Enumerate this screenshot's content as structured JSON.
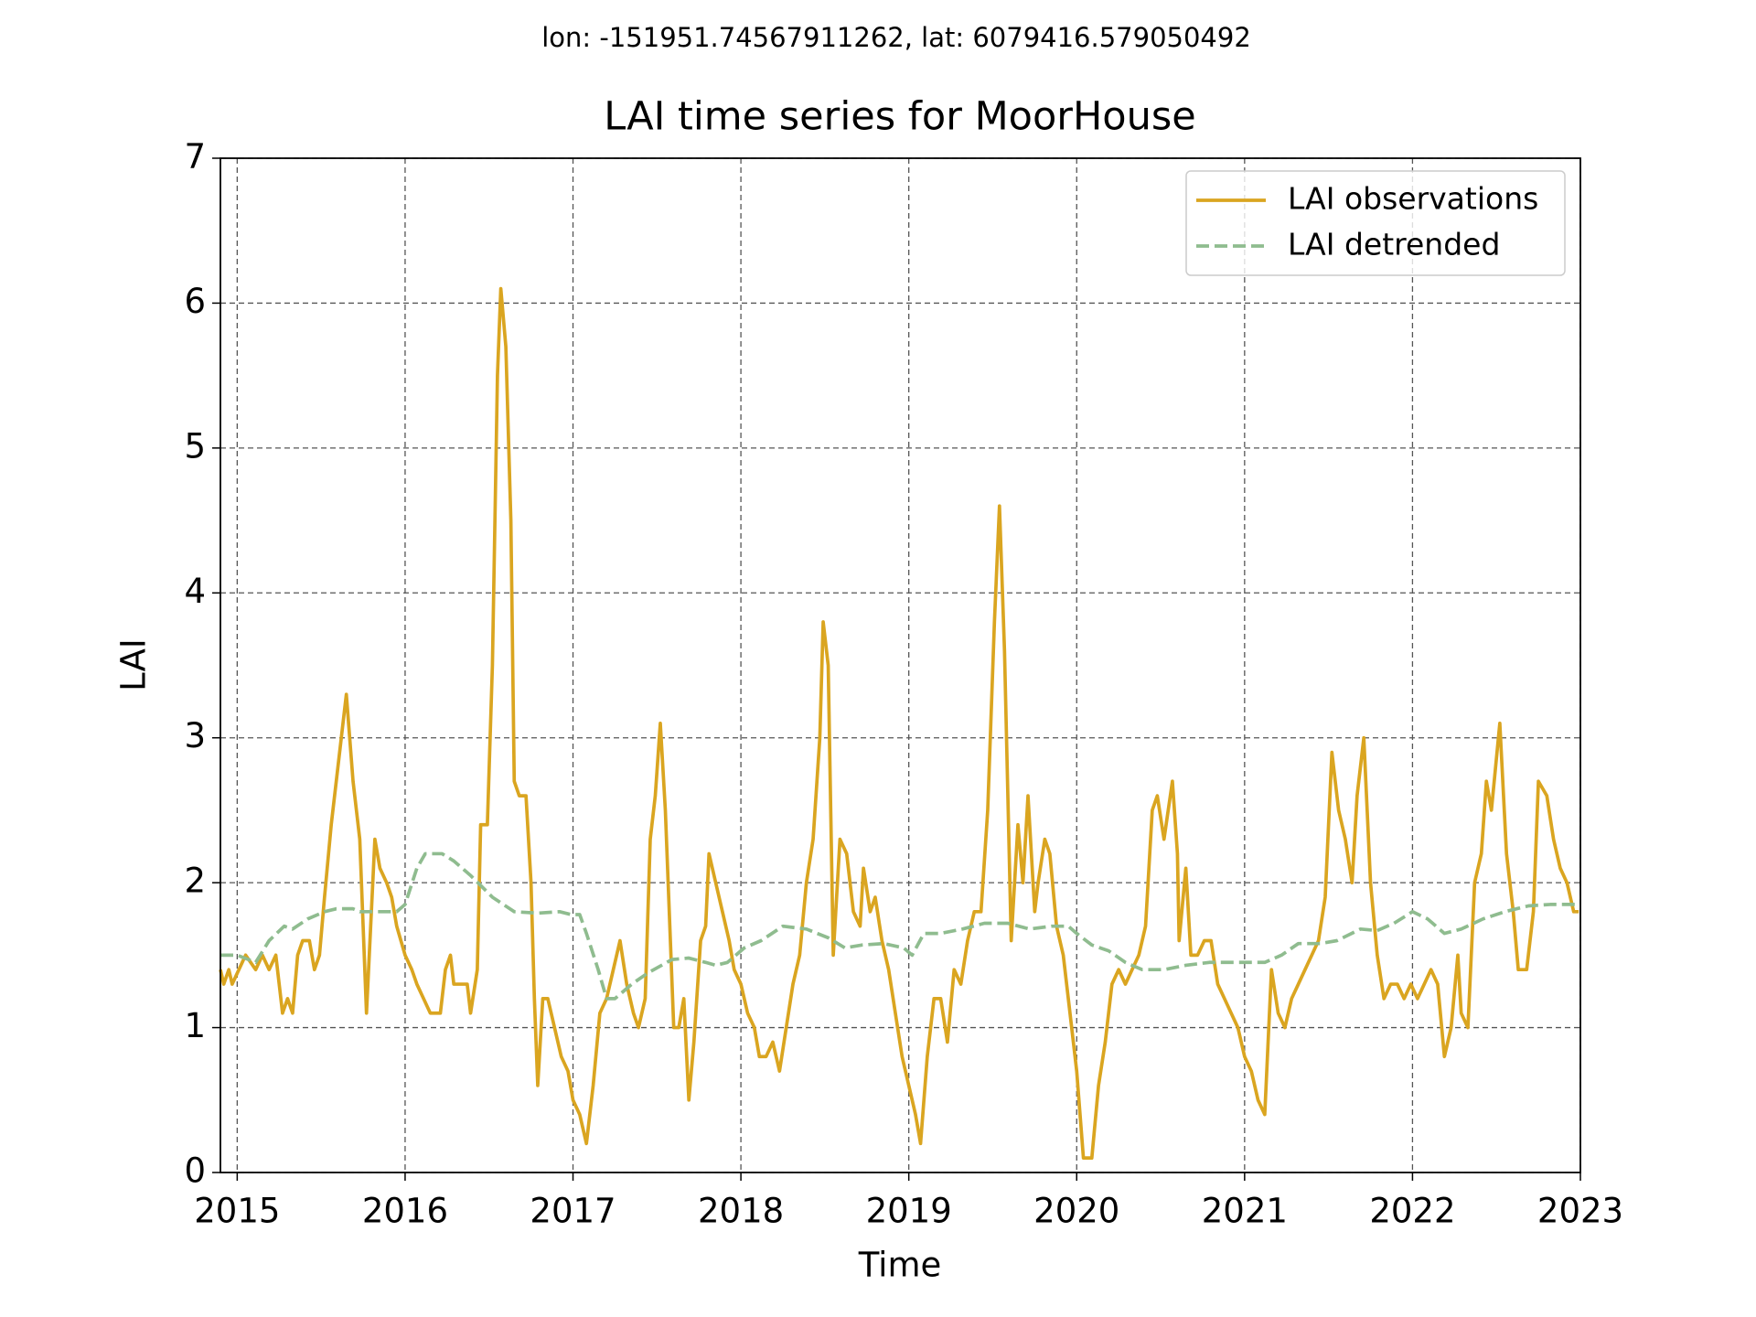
{
  "chart_data": {
    "type": "line",
    "suptitle": "lon: -151951.74567911262, lat: 6079416.579050492",
    "title": "LAI time series for MoorHouse",
    "x_label": "Time",
    "y_label": "LAI",
    "xlim": [
      2014.9,
      2023
    ],
    "xticks": [
      2015,
      2016,
      2017,
      2018,
      2019,
      2020,
      2021,
      2022,
      2023
    ],
    "ylim": [
      0,
      7
    ],
    "yticks": [
      0,
      1,
      2,
      3,
      4,
      5,
      6,
      7
    ],
    "grid": true,
    "legend": "upper right",
    "series": [
      {
        "name": "LAI observations",
        "color": "#daa520",
        "dash": "solid",
        "x": [
          2014.9,
          2014.92,
          2014.95,
          2014.97,
          2015.01,
          2015.05,
          2015.11,
          2015.15,
          2015.19,
          2015.23,
          2015.25,
          2015.27,
          2015.3,
          2015.33,
          2015.36,
          2015.39,
          2015.43,
          2015.46,
          2015.49,
          2015.52,
          2015.56,
          2015.6,
          2015.65,
          2015.69,
          2015.73,
          2015.77,
          2015.82,
          2015.85,
          2015.89,
          2015.92,
          2015.95,
          2016.0,
          2016.04,
          2016.07,
          2016.11,
          2016.15,
          2016.21,
          2016.24,
          2016.27,
          2016.29,
          2016.33,
          2016.37,
          2016.39,
          2016.43,
          2016.45,
          2016.49,
          2016.52,
          2016.55,
          2016.57,
          2016.6,
          2016.63,
          2016.65,
          2016.68,
          2016.72,
          2016.75,
          2016.77,
          2016.79,
          2016.82,
          2016.85,
          2016.89,
          2016.93,
          2016.97,
          2017.0,
          2017.04,
          2017.08,
          2017.12,
          2017.16,
          2017.2,
          2017.24,
          2017.28,
          2017.32,
          2017.36,
          2017.39,
          2017.43,
          2017.46,
          2017.49,
          2017.52,
          2017.55,
          2017.57,
          2017.6,
          2017.63,
          2017.66,
          2017.69,
          2017.72,
          2017.76,
          2017.79,
          2017.81,
          2017.85,
          2017.89,
          2017.93,
          2017.96,
          2018.0,
          2018.04,
          2018.08,
          2018.11,
          2018.15,
          2018.19,
          2018.21,
          2018.23,
          2018.27,
          2018.31,
          2018.35,
          2018.39,
          2018.43,
          2018.47,
          2018.49,
          2018.52,
          2018.55,
          2018.59,
          2018.63,
          2018.67,
          2018.71,
          2018.73,
          2018.77,
          2018.8,
          2018.84,
          2018.88,
          2018.92,
          2018.96,
          2019.0,
          2019.04,
          2019.07,
          2019.11,
          2019.15,
          2019.19,
          2019.23,
          2019.27,
          2019.31,
          2019.35,
          2019.39,
          2019.43,
          2019.47,
          2019.51,
          2019.54,
          2019.57,
          2019.61,
          2019.65,
          2019.68,
          2019.71,
          2019.75,
          2019.77,
          2019.81,
          2019.84,
          2019.88,
          2019.92,
          2019.96,
          2020.0,
          2020.04,
          2020.09,
          2020.13,
          2020.17,
          2020.21,
          2020.25,
          2020.29,
          2020.33,
          2020.37,
          2020.41,
          2020.45,
          2020.48,
          2020.52,
          2020.57,
          2020.6,
          2020.61,
          2020.65,
          2020.68,
          2020.72,
          2020.76,
          2020.8,
          2020.84,
          2020.88,
          2020.92,
          2020.96,
          2021.0,
          2021.04,
          2021.08,
          2021.12,
          2021.16,
          2021.2,
          2021.24,
          2021.28,
          2021.32,
          2021.36,
          2021.4,
          2021.44,
          2021.48,
          2021.52,
          2021.56,
          2021.6,
          2021.64,
          2021.67,
          2021.71,
          2021.75,
          2021.79,
          2021.83,
          2021.87,
          2021.91,
          2021.95,
          2021.99,
          2022.03,
          2022.07,
          2022.11,
          2022.15,
          2022.19,
          2022.23,
          2022.27,
          2022.29,
          2022.33,
          2022.37,
          2022.41,
          2022.44,
          2022.47,
          2022.52,
          2022.56,
          2022.6,
          2022.63,
          2022.68,
          2022.72,
          2022.75,
          2022.8,
          2022.84,
          2022.88,
          2022.92,
          2022.96,
          2022.99
        ],
        "values": [
          1.4,
          1.3,
          1.4,
          1.3,
          1.4,
          1.5,
          1.4,
          1.5,
          1.4,
          1.5,
          1.3,
          1.1,
          1.2,
          1.1,
          1.5,
          1.6,
          1.6,
          1.4,
          1.5,
          1.9,
          2.4,
          2.8,
          3.3,
          2.7,
          2.3,
          1.1,
          2.3,
          2.1,
          2.0,
          1.9,
          1.7,
          1.5,
          1.4,
          1.3,
          1.2,
          1.1,
          1.1,
          1.4,
          1.5,
          1.3,
          1.3,
          1.3,
          1.1,
          1.4,
          2.4,
          2.4,
          3.5,
          5.5,
          6.1,
          5.7,
          4.5,
          2.7,
          2.6,
          2.6,
          2.0,
          1.2,
          0.6,
          1.2,
          1.2,
          1.0,
          0.8,
          0.7,
          0.5,
          0.4,
          0.2,
          0.6,
          1.1,
          1.2,
          1.4,
          1.6,
          1.3,
          1.1,
          1.0,
          1.2,
          2.3,
          2.6,
          3.1,
          2.5,
          1.9,
          1.0,
          1.0,
          1.2,
          0.5,
          0.9,
          1.6,
          1.7,
          2.2,
          2.0,
          1.8,
          1.6,
          1.4,
          1.3,
          1.1,
          1.0,
          0.8,
          0.8,
          0.9,
          0.8,
          0.7,
          1.0,
          1.3,
          1.5,
          2.0,
          2.3,
          3.0,
          3.8,
          3.5,
          1.5,
          2.3,
          2.2,
          1.8,
          1.7,
          2.1,
          1.8,
          1.9,
          1.6,
          1.4,
          1.1,
          0.8,
          0.6,
          0.4,
          0.2,
          0.8,
          1.2,
          1.2,
          0.9,
          1.4,
          1.3,
          1.6,
          1.8,
          1.8,
          2.5,
          3.8,
          4.6,
          3.6,
          1.6,
          2.4,
          2.0,
          2.6,
          1.8,
          2.0,
          2.3,
          2.2,
          1.7,
          1.5,
          1.1,
          0.7,
          0.1,
          0.1,
          0.6,
          0.9,
          1.3,
          1.4,
          1.3,
          1.4,
          1.5,
          1.7,
          2.5,
          2.6,
          2.3,
          2.7,
          2.2,
          1.6,
          2.1,
          1.5,
          1.5,
          1.6,
          1.6,
          1.3,
          1.2,
          1.1,
          1.0,
          0.8,
          0.7,
          0.5,
          0.4,
          1.4,
          1.1,
          1.0,
          1.2,
          1.3,
          1.4,
          1.5,
          1.6,
          1.9,
          2.9,
          2.5,
          2.3,
          2.0,
          2.6,
          3.0,
          2.0,
          1.5,
          1.2,
          1.3,
          1.3,
          1.2,
          1.3,
          1.2,
          1.3,
          1.4,
          1.3,
          0.8,
          1.0,
          1.5,
          1.1,
          1.0,
          2.0,
          2.2,
          2.7,
          2.5,
          3.1,
          2.2,
          1.8,
          1.4,
          1.4,
          1.8,
          2.7,
          2.6,
          2.3,
          2.1,
          2.0,
          1.8,
          1.8
        ]
      },
      {
        "name": "LAI detrended",
        "color": "#8fbc8f",
        "dash": "dashed",
        "x": [
          2014.9,
          2015.0,
          2015.11,
          2015.19,
          2015.28,
          2015.33,
          2015.42,
          2015.52,
          2015.59,
          2015.69,
          2015.73,
          2015.85,
          2015.95,
          2016.0,
          2016.07,
          2016.12,
          2016.22,
          2016.29,
          2016.39,
          2016.52,
          2016.65,
          2016.79,
          2016.92,
          2016.99,
          2017.04,
          2017.08,
          2017.15,
          2017.2,
          2017.25,
          2017.35,
          2017.45,
          2017.59,
          2017.69,
          2017.79,
          2017.85,
          2017.92,
          2018.02,
          2018.12,
          2018.25,
          2018.39,
          2018.52,
          2018.62,
          2018.72,
          2018.85,
          2018.97,
          2019.02,
          2019.09,
          2019.19,
          2019.32,
          2019.45,
          2019.59,
          2019.72,
          2019.85,
          2019.95,
          2020.0,
          2020.09,
          2020.19,
          2020.29,
          2020.39,
          2020.52,
          2020.65,
          2020.79,
          2020.92,
          2021.05,
          2021.12,
          2021.22,
          2021.32,
          2021.45,
          2021.55,
          2021.69,
          2021.79,
          2021.89,
          2022.0,
          2022.09,
          2022.19,
          2022.29,
          2022.42,
          2022.55,
          2022.69,
          2022.82,
          2022.89,
          2022.99
        ],
        "values": [
          1.5,
          1.5,
          1.45,
          1.6,
          1.7,
          1.68,
          1.75,
          1.8,
          1.82,
          1.82,
          1.8,
          1.8,
          1.8,
          1.85,
          2.1,
          2.2,
          2.2,
          2.15,
          2.05,
          1.9,
          1.8,
          1.79,
          1.8,
          1.78,
          1.78,
          1.65,
          1.4,
          1.2,
          1.2,
          1.3,
          1.38,
          1.47,
          1.48,
          1.45,
          1.43,
          1.45,
          1.55,
          1.6,
          1.7,
          1.68,
          1.62,
          1.55,
          1.57,
          1.58,
          1.55,
          1.5,
          1.65,
          1.65,
          1.68,
          1.72,
          1.72,
          1.68,
          1.7,
          1.7,
          1.65,
          1.57,
          1.53,
          1.45,
          1.4,
          1.4,
          1.43,
          1.45,
          1.45,
          1.45,
          1.45,
          1.5,
          1.58,
          1.58,
          1.6,
          1.68,
          1.67,
          1.72,
          1.8,
          1.75,
          1.65,
          1.68,
          1.75,
          1.8,
          1.84,
          1.85,
          1.85,
          1.85
        ]
      }
    ]
  }
}
